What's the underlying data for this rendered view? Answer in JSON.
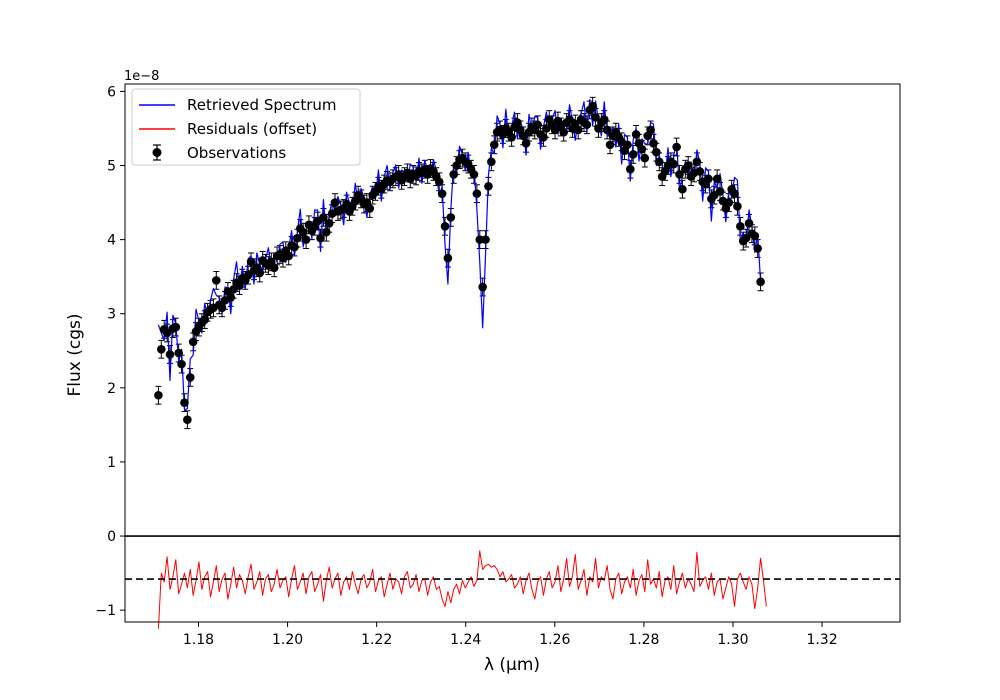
{
  "chart_data": {
    "type": "line",
    "colors": {
      "spectrum": "#0000ff",
      "residuals": "#ff0000",
      "observations": "#000000"
    },
    "axes": {
      "x_label": "λ (μm)",
      "y_label": "Flux (cgs)",
      "y_offset_label": "1e−8",
      "x_range": [
        1.1635,
        1.3375
      ],
      "y_range": [
        -1.16,
        6.1
      ],
      "x_ticks": [
        1.18,
        1.2,
        1.22,
        1.24,
        1.26,
        1.28,
        1.3,
        1.32
      ],
      "x_tick_labels": [
        "1.18",
        "1.20",
        "1.22",
        "1.24",
        "1.26",
        "1.28",
        "1.30",
        "1.32"
      ],
      "y_ticks": [
        -1,
        0,
        1,
        2,
        3,
        4,
        5,
        6
      ],
      "y_tick_labels": [
        "−1",
        "0",
        "1",
        "2",
        "3",
        "4",
        "5",
        "6"
      ],
      "zero_line": 0,
      "residual_baseline": -0.58
    },
    "legend": {
      "position": "top-left",
      "entries": [
        {
          "label": "Retrieved Spectrum",
          "kind": "line",
          "color": "#0000ff"
        },
        {
          "label": "Residuals (offset)",
          "kind": "line",
          "color": "#ff0000"
        },
        {
          "label": "Observations",
          "kind": "errorbar",
          "color": "#000000"
        }
      ]
    },
    "observations": {
      "x_start": 1.171,
      "x_step": 0.00065,
      "yerr": 0.12,
      "y": [
        1.9,
        2.52,
        2.79,
        2.74,
        2.45,
        2.8,
        2.82,
        2.47,
        2.32,
        1.8,
        1.57,
        2.14,
        2.62,
        2.76,
        2.82,
        2.88,
        2.92,
        3.02,
        3.06,
        3.08,
        3.45,
        3.12,
        3.08,
        3.18,
        3.3,
        3.22,
        3.33,
        3.42,
        3.38,
        3.48,
        3.45,
        3.52,
        3.7,
        3.58,
        3.62,
        3.55,
        3.72,
        3.68,
        3.65,
        3.7,
        3.62,
        3.78,
        3.8,
        3.75,
        3.85,
        3.78,
        3.92,
        3.9,
        4.02,
        4.15,
        4.1,
        4.0,
        4.2,
        4.12,
        4.18,
        4.25,
        4.02,
        4.3,
        4.1,
        4.22,
        4.35,
        4.5,
        4.38,
        4.4,
        4.42,
        4.48,
        4.38,
        4.45,
        4.52,
        4.6,
        4.55,
        4.48,
        4.5,
        4.42,
        4.6,
        4.65,
        4.72,
        4.68,
        4.75,
        4.8,
        4.78,
        4.82,
        4.85,
        4.88,
        4.8,
        4.85,
        4.9,
        4.82,
        4.88,
        4.86,
        4.92,
        4.9,
        4.95,
        4.88,
        4.96,
        4.92,
        4.85,
        4.78,
        4.62,
        4.18,
        3.75,
        4.3,
        4.88,
        5.0,
        5.08,
        5.1,
        5.05,
        5.02,
        4.95,
        4.88,
        4.62,
        4.0,
        3.36,
        4.0,
        4.72,
        5.05,
        5.28,
        5.45,
        5.48,
        5.42,
        5.5,
        5.45,
        5.38,
        5.52,
        5.58,
        5.48,
        5.4,
        5.3,
        5.45,
        5.52,
        5.48,
        5.55,
        5.42,
        5.38,
        5.5,
        5.62,
        5.55,
        5.48,
        5.6,
        5.52,
        5.45,
        5.58,
        5.62,
        5.5,
        5.56,
        5.48,
        5.62,
        5.58,
        5.55,
        5.75,
        5.8,
        5.65,
        5.5,
        5.58,
        5.62,
        5.48,
        5.28,
        5.4,
        5.45,
        5.38,
        5.32,
        5.2,
        5.28,
        4.95,
        5.15,
        5.42,
        5.3,
        5.22,
        5.1,
        5.4,
        5.48,
        5.3,
        5.18,
        5.05,
        4.85,
        4.92,
        5.0,
        5.05,
        5.02,
        5.25,
        4.88,
        4.68,
        4.95,
        5.0,
        4.85,
        4.9,
        5.05,
        4.92,
        4.78,
        4.75,
        4.82,
        4.55,
        4.6,
        4.82,
        4.65,
        4.52,
        4.42,
        4.5,
        4.68,
        4.62,
        4.45,
        4.18,
        3.98,
        4.02,
        4.22,
        4.08,
        4.05,
        3.88,
        3.43
      ]
    },
    "spectrum_overshoot": [
      0.95,
      0.22,
      -0.15,
      0.28,
      -0.35,
      0.18,
      0.05,
      -0.12,
      0.2,
      -0.1,
      0.15,
      0.25,
      -0.18,
      0.3,
      0.08,
      -0.14,
      0.22,
      -0.05,
      0.12,
      0.26,
      -0.2,
      0.1,
      -0.08,
      0.18,
      0.05,
      -0.22,
      0.14,
      0.28,
      -0.06,
      0.16,
      -0.12,
      0.22,
      0.08,
      -0.18,
      0.2,
      0.12,
      -0.15,
      0.06,
      0.24,
      -0.1,
      0.18,
      -0.08,
      0.14,
      0.22,
      -0.16,
      0.1,
      0.2,
      -0.12,
      0.08,
      0.26,
      -0.2,
      0.12,
      0.05,
      -0.1,
      0.22,
      0.15,
      -0.18,
      0.24,
      -0.06,
      0.12,
      0.18,
      -0.14,
      0.2,
      0.06,
      -0.22,
      0.16,
      0.1,
      -0.08,
      0.24,
      -0.12,
      0.14,
      0.08,
      -0.2,
      0.18,
      0.12,
      -0.06,
      0.22,
      -0.16,
      0.1,
      0.2,
      -0.1,
      0.08,
      0.16,
      -0.18,
      0.14,
      0.06,
      -0.12,
      0.2,
      0.1,
      -0.08,
      0.18,
      -0.14,
      0.12,
      0.06,
      -0.1,
      0.16,
      0.08,
      -0.2,
      0.1,
      -0.25,
      -0.35,
      0.1,
      0.15,
      -0.1,
      0.18,
      0.05,
      -0.12,
      0.16,
      -0.08,
      0.1,
      -0.2,
      -0.3,
      -0.55,
      -0.2,
      0.15,
      0.18,
      -0.12,
      0.22,
      0.08,
      -0.18,
      0.26,
      -0.1,
      0.14,
      0.2,
      -0.22,
      0.12,
      0.08,
      -0.16,
      0.24,
      -0.06,
      0.18,
      0.1,
      -0.2,
      0.14,
      0.22,
      -0.12,
      0.08,
      0.26,
      -0.18,
      0.12,
      0.06,
      -0.14,
      0.2,
      0.1,
      -0.22,
      0.16,
      0.08,
      0.28,
      -0.1,
      0.14,
      -0.26,
      0.22,
      0.1,
      -0.18,
      0.24,
      -0.08,
      0.16,
      0.12,
      -0.2,
      0.18,
      -0.3,
      0.22,
      0.1,
      -0.16,
      0.2,
      0.08,
      -0.24,
      0.14,
      0.2,
      -0.12,
      0.1,
      0.26,
      -0.18,
      0.08,
      0.16,
      -0.1,
      0.24,
      -0.2,
      0.12,
      0.06,
      -0.22,
      0.18,
      0.1,
      -0.14,
      0.2,
      -0.08,
      0.16,
      0.12,
      -0.26,
      0.22,
      0.1,
      -0.3,
      0.18,
      -0.12,
      0.24,
      0.08,
      -0.18,
      0.16,
      -0.1,
      0.22,
      0.35,
      -0.2,
      0.12,
      -0.08,
      0.18,
      0.1,
      -0.22,
      0.2
    ],
    "residuals": [
      -1.25,
      -0.5,
      -0.62,
      -0.28,
      -0.72,
      -0.55,
      -0.32,
      -0.78,
      -0.65,
      -0.5,
      -0.7,
      -0.45,
      -0.8,
      -0.6,
      -0.35,
      -0.72,
      -0.55,
      -0.48,
      -0.82,
      -0.62,
      -0.4,
      -0.75,
      -0.58,
      -0.5,
      -0.85,
      -0.65,
      -0.42,
      -0.7,
      -0.52,
      -0.6,
      -0.78,
      -0.55,
      -0.38,
      -0.72,
      -0.62,
      -0.48,
      -0.8,
      -0.58,
      -0.52,
      -0.75,
      -0.65,
      -0.45,
      -0.7,
      -0.6,
      -0.55,
      -0.82,
      -0.58,
      -0.4,
      -0.72,
      -0.62,
      -0.5,
      -0.78,
      -0.55,
      -0.48,
      -0.75,
      -0.65,
      -0.52,
      -0.88,
      -0.6,
      -0.42,
      -0.7,
      -0.58,
      -0.5,
      -0.8,
      -0.62,
      -0.55,
      -0.72,
      -0.48,
      -0.65,
      -0.78,
      -0.58,
      -0.52,
      -0.7,
      -0.62,
      -0.45,
      -0.75,
      -0.6,
      -0.55,
      -0.82,
      -0.65,
      -0.5,
      -0.72,
      -0.58,
      -0.62,
      -0.78,
      -0.55,
      -0.48,
      -0.7,
      -0.65,
      -0.52,
      -0.75,
      -0.6,
      -0.58,
      -0.8,
      -0.62,
      -0.55,
      -0.72,
      -0.68,
      -0.85,
      -0.95,
      -0.75,
      -0.9,
      -0.72,
      -0.65,
      -0.78,
      -0.6,
      -0.7,
      -0.62,
      -0.55,
      -0.68,
      -0.6,
      -0.2,
      -0.45,
      -0.4,
      -0.38,
      -0.42,
      -0.4,
      -0.45,
      -0.55,
      -0.48,
      -0.62,
      -0.58,
      -0.52,
      -0.7,
      -0.65,
      -0.55,
      -0.78,
      -0.6,
      -0.5,
      -0.72,
      -0.85,
      -0.62,
      -0.55,
      -0.8,
      -0.58,
      -0.48,
      -0.7,
      -0.62,
      -0.4,
      -0.75,
      -0.58,
      -0.3,
      -0.68,
      -0.55,
      -0.25,
      -0.72,
      -0.6,
      -0.45,
      -0.8,
      -0.55,
      -0.62,
      -0.3,
      -0.7,
      -0.55,
      -0.6,
      -0.4,
      -0.72,
      -0.85,
      -0.58,
      -0.5,
      -0.78,
      -0.62,
      -0.55,
      -0.7,
      -0.45,
      -0.8,
      -0.6,
      -0.52,
      -0.75,
      -0.32,
      -0.65,
      -0.58,
      -0.7,
      -0.48,
      -0.82,
      -0.6,
      -0.55,
      -0.72,
      -0.4,
      -0.78,
      -0.62,
      -0.5,
      -0.7,
      -0.58,
      -0.65,
      -0.75,
      -0.22,
      -0.68,
      -0.6,
      -0.55,
      -0.72,
      -0.5,
      -0.8,
      -0.62,
      -0.58,
      -0.85,
      -0.7,
      -0.55,
      -0.65,
      -0.95,
      -0.58,
      -0.5,
      -0.62,
      -0.72,
      -0.55,
      -0.65,
      -0.98,
      -0.7,
      -0.3,
      -0.6,
      -0.95
    ]
  }
}
